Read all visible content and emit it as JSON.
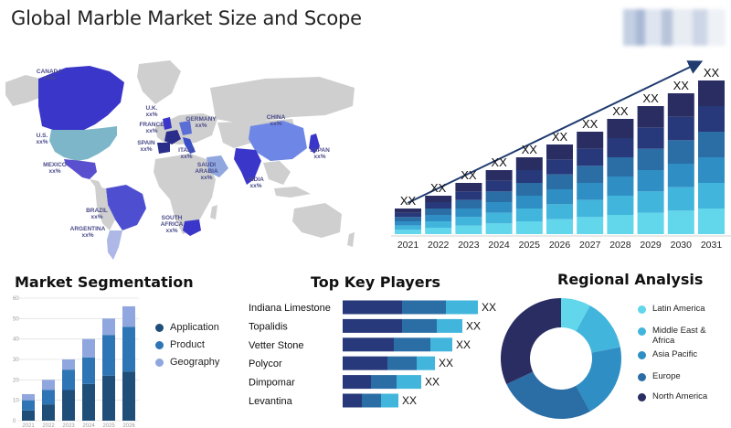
{
  "header": {
    "title": "Global Marble Market Size and Scope"
  },
  "colors": {
    "navy": "#2a2d62",
    "dark_blue": "#27397a",
    "mid_blue": "#2b6ea6",
    "blue": "#2f8fc4",
    "light_blue": "#42b5dc",
    "cyan": "#62d6ea",
    "land": "#cfcfcf",
    "seg_dark": "#1f4e79",
    "seg_mid": "#2e75b6",
    "seg_light": "#8fa7de"
  },
  "map": {
    "labels": [
      {
        "name": "CANADA",
        "value": "xx%"
      },
      {
        "name": "U.S.",
        "value": "xx%"
      },
      {
        "name": "MEXICO",
        "value": "xx%"
      },
      {
        "name": "BRAZIL",
        "value": "xx%"
      },
      {
        "name": "ARGENTINA",
        "value": "xx%"
      },
      {
        "name": "U.K.",
        "value": "xx%"
      },
      {
        "name": "FRANCE",
        "value": "xx%"
      },
      {
        "name": "SPAIN",
        "value": "xx%"
      },
      {
        "name": "GERMANY",
        "value": "xx%"
      },
      {
        "name": "ITALY",
        "value": "xx%"
      },
      {
        "name": "SAUDI ARABIA",
        "value": "xx%"
      },
      {
        "name": "SOUTH AFRICA",
        "value": "xx%"
      },
      {
        "name": "CHINA",
        "value": "xx%"
      },
      {
        "name": "INDIA",
        "value": "xx%"
      },
      {
        "name": "JAPAN",
        "value": "xx%"
      }
    ]
  },
  "segmentation": {
    "title": "Market Segmentation",
    "legend": [
      "Application",
      "Product",
      "Geography"
    ]
  },
  "key_players": {
    "title": "Top Key Players"
  },
  "regional": {
    "title": "Regional Analysis"
  },
  "chart_data": [
    {
      "type": "bar",
      "stacked": true,
      "categories": [
        "2021",
        "2022",
        "2023",
        "2024",
        "2025",
        "2026",
        "2027",
        "2028",
        "2029",
        "2030",
        "2031"
      ],
      "data_labels": [
        "XX",
        "XX",
        "XX",
        "XX",
        "XX",
        "XX",
        "XX",
        "XX",
        "XX",
        "XX",
        "XX"
      ],
      "series": [
        {
          "values": [
            1,
            1.5,
            2,
            2.5,
            3,
            3.5,
            4,
            4.5,
            5,
            5.5,
            6
          ]
        },
        {
          "values": [
            1,
            1.5,
            2,
            2.5,
            3,
            3.5,
            4,
            4.5,
            5,
            5.5,
            6
          ]
        },
        {
          "values": [
            1,
            1.5,
            2,
            2.5,
            3,
            3.5,
            4,
            4.5,
            5,
            5.5,
            6
          ]
        },
        {
          "values": [
            1,
            1.5,
            2,
            2.5,
            3,
            3.5,
            4,
            4.5,
            5,
            5.5,
            6
          ]
        },
        {
          "values": [
            1,
            1.5,
            2,
            2.5,
            3,
            3.5,
            4,
            4.5,
            5,
            5.5,
            6
          ]
        },
        {
          "values": [
            1,
            1.5,
            2,
            2.5,
            3,
            3.5,
            4,
            4.5,
            5,
            5.5,
            6
          ]
        }
      ],
      "trend_arrow": true,
      "grid": false
    },
    {
      "type": "bar",
      "stacked": true,
      "title": "Market Segmentation",
      "categories": [
        "2021",
        "2022",
        "2023",
        "2024",
        "2025",
        "2026"
      ],
      "y_ticks": [
        "0",
        "10",
        "20",
        "30",
        "40",
        "50",
        "60"
      ],
      "ylim": [
        0,
        60
      ],
      "series": [
        {
          "name": "Application",
          "values": [
            5,
            8,
            15,
            18,
            22,
            24
          ]
        },
        {
          "name": "Product",
          "values": [
            5,
            7,
            10,
            13,
            20,
            22
          ]
        },
        {
          "name": "Geography",
          "values": [
            3,
            5,
            5,
            9,
            8,
            10
          ]
        }
      ],
      "legend": "right",
      "grid": true
    },
    {
      "type": "bar",
      "orientation": "horizontal",
      "stacked": true,
      "title": "Top Key Players",
      "categories": [
        "Indiana Limestone",
        "Topalidis",
        "Vetter Stone",
        "Polycor",
        "Dimpomar",
        "Levantina"
      ],
      "data_labels": [
        "XX",
        "XX",
        "XX",
        "XX",
        "XX",
        "XX"
      ],
      "series": [
        {
          "values": [
            65,
            65,
            56,
            49,
            31,
            21
          ]
        },
        {
          "values": [
            48,
            38,
            40,
            32,
            28,
            21
          ]
        },
        {
          "values": [
            35,
            28,
            24,
            20,
            27,
            19
          ]
        }
      ],
      "grid": false
    },
    {
      "type": "pie",
      "donut": true,
      "title": "Regional Analysis",
      "categories": [
        "Latin America",
        "Middle East & Africa",
        "Asia Pacific",
        "Europe",
        "North America"
      ],
      "values": [
        8,
        14,
        20,
        26,
        32
      ],
      "legend": "right"
    }
  ]
}
